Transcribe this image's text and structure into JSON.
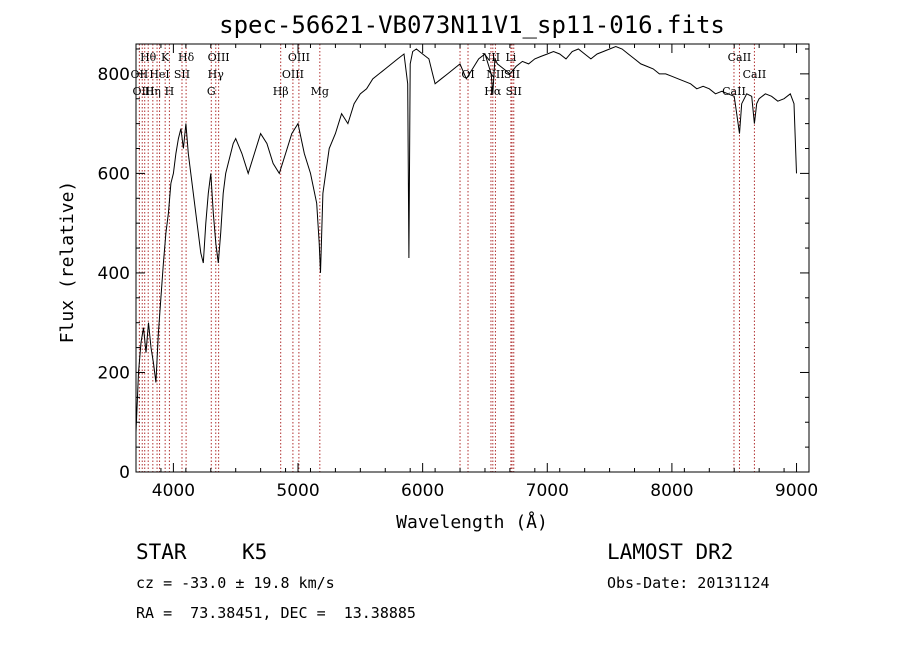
{
  "chart_data": {
    "type": "line",
    "title": "spec-56621-VB073N11V1_sp11-016.fits",
    "xlabel": "Wavelength (Å)",
    "ylabel": "Flux (relative)",
    "xlim": [
      3700,
      9100
    ],
    "ylim": [
      0,
      860
    ],
    "xticks": [
      4000,
      5000,
      6000,
      7000,
      8000,
      9000
    ],
    "yticks": [
      0,
      200,
      400,
      600,
      800
    ],
    "grid": false,
    "series": [
      {
        "x": [
          3700,
          3720,
          3740,
          3760,
          3780,
          3800,
          3820,
          3840,
          3860,
          3880,
          3900,
          3920,
          3940,
          3960,
          3980,
          4000,
          4020,
          4040,
          4060,
          4080,
          4100,
          4120,
          4140,
          4160,
          4180,
          4200,
          4220,
          4240,
          4260,
          4280,
          4300,
          4320,
          4340,
          4360,
          4380,
          4400,
          4420,
          4440,
          4460,
          4480,
          4500,
          4550,
          4600,
          4650,
          4700,
          4750,
          4800,
          4850,
          4900,
          4950,
          5000,
          5050,
          5100,
          5150,
          5170,
          5180,
          5200,
          5250,
          5300,
          5350,
          5400,
          5450,
          5500,
          5550,
          5600,
          5650,
          5700,
          5750,
          5800,
          5850,
          5880,
          5890,
          5900,
          5920,
          5950,
          6000,
          6050,
          6080,
          6100,
          6150,
          6200,
          6250,
          6300,
          6350,
          6400,
          6450,
          6500,
          6550,
          6563,
          6580,
          6600,
          6650,
          6700,
          6750,
          6800,
          6850,
          6900,
          6950,
          7000,
          7050,
          7100,
          7150,
          7200,
          7250,
          7300,
          7350,
          7400,
          7450,
          7500,
          7550,
          7600,
          7650,
          7700,
          7750,
          7800,
          7850,
          7900,
          7950,
          8000,
          8050,
          8100,
          8150,
          8200,
          8250,
          8300,
          8350,
          8400,
          8450,
          8500,
          8520,
          8542,
          8560,
          8600,
          8640,
          8662,
          8680,
          8700,
          8750,
          8800,
          8850,
          8900,
          8950,
          8980,
          9000
        ],
        "values": [
          80,
          200,
          260,
          290,
          240,
          300,
          250,
          220,
          180,
          280,
          350,
          420,
          480,
          520,
          580,
          600,
          640,
          670,
          690,
          650,
          700,
          640,
          600,
          560,
          520,
          480,
          440,
          420,
          500,
          560,
          600,
          520,
          460,
          420,
          480,
          560,
          600,
          620,
          640,
          660,
          670,
          640,
          600,
          640,
          680,
          660,
          620,
          600,
          640,
          680,
          700,
          640,
          600,
          540,
          460,
          400,
          560,
          650,
          680,
          720,
          700,
          740,
          760,
          770,
          790,
          800,
          810,
          820,
          830,
          840,
          780,
          430,
          820,
          845,
          850,
          840,
          830,
          800,
          780,
          790,
          800,
          810,
          820,
          790,
          810,
          830,
          840,
          800,
          760,
          830,
          820,
          810,
          800,
          815,
          825,
          820,
          830,
          835,
          840,
          845,
          840,
          830,
          845,
          850,
          840,
          830,
          840,
          845,
          850,
          855,
          850,
          840,
          830,
          820,
          815,
          810,
          800,
          800,
          795,
          790,
          785,
          780,
          770,
          775,
          770,
          760,
          765,
          760,
          755,
          720,
          680,
          740,
          760,
          755,
          700,
          740,
          750,
          760,
          755,
          745,
          750,
          760,
          740,
          600
        ],
        "color": "#000000"
      }
    ],
    "line_labels": [
      {
        "text": "Hθ",
        "x": 3798,
        "row": 0
      },
      {
        "text": "K",
        "x": 3934,
        "row": 0
      },
      {
        "text": "Hδ",
        "x": 4102,
        "row": 0
      },
      {
        "text": "OIII",
        "x": 4363,
        "row": 0
      },
      {
        "text": "OIII",
        "x": 5007,
        "row": 0
      },
      {
        "text": "NII",
        "x": 6548,
        "row": 0
      },
      {
        "text": "Li",
        "x": 6708,
        "row": 0
      },
      {
        "text": "CaII",
        "x": 8542,
        "row": 0
      },
      {
        "text": "OII",
        "x": 3727,
        "row": 1
      },
      {
        "text": "HeI",
        "x": 3889,
        "row": 1
      },
      {
        "text": "SII",
        "x": 4069,
        "row": 1
      },
      {
        "text": "Hγ",
        "x": 4340,
        "row": 1
      },
      {
        "text": "OIII",
        "x": 4959,
        "row": 1
      },
      {
        "text": "OI",
        "x": 6364,
        "row": 1
      },
      {
        "text": "NII",
        "x": 6584,
        "row": 1
      },
      {
        "text": "SII",
        "x": 6717,
        "row": 1
      },
      {
        "text": "CaII",
        "x": 8662,
        "row": 1
      },
      {
        "text": "OIII",
        "x": 3760,
        "row": 2
      },
      {
        "text": "Hη",
        "x": 3835,
        "row": 2
      },
      {
        "text": "H",
        "x": 3968,
        "row": 2
      },
      {
        "text": "G",
        "x": 4304,
        "row": 2
      },
      {
        "text": "Hβ",
        "x": 4861,
        "row": 2
      },
      {
        "text": "Mg",
        "x": 5175,
        "row": 2
      },
      {
        "text": "Hα",
        "x": 6563,
        "row": 2
      },
      {
        "text": "SII",
        "x": 6731,
        "row": 2
      },
      {
        "text": "CaII",
        "x": 8498,
        "row": 2
      }
    ],
    "line_markers": [
      3727,
      3750,
      3770,
      3798,
      3835,
      3869,
      3889,
      3934,
      3968,
      4069,
      4102,
      4304,
      4340,
      4363,
      4861,
      4959,
      5007,
      5175,
      6300,
      6364,
      6548,
      6563,
      6584,
      6708,
      6717,
      6731,
      8498,
      8542,
      8662
    ]
  },
  "info": {
    "object_class": "STAR",
    "subclass": "K5",
    "survey": "LAMOST DR2",
    "cz": "cz = -33.0 ± 19.8 km/s",
    "obs_date": "Obs-Date: 20131124",
    "coords": "RA =  73.38451, DEC =  13.38885"
  }
}
